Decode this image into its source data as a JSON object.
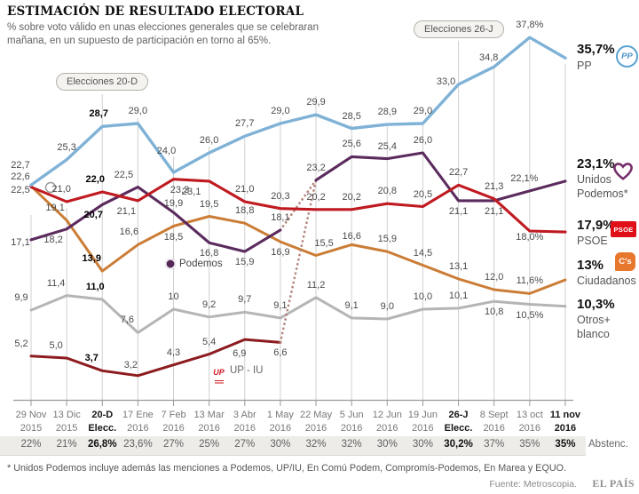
{
  "header": {
    "title": "ESTIMACIÓN DE RESULTADO ELECTORAL",
    "subtitle_line1": "% sobre voto válido en unas elecciones generales que se celebraran",
    "subtitle_line2": "mañana, en un supuesto de participación en torno al 65%."
  },
  "annotations": {
    "election_pill_1": "Elecciones 20-D",
    "election_pill_2": "Elecciones 26-J",
    "podemos_label": "Podemos",
    "upiu_label": "UP - IU",
    "upiu_logo_text": "UP"
  },
  "chart_data": {
    "type": "line",
    "grid": "vertical",
    "ylim": [
      0,
      40
    ],
    "connector_color": "#b5857c",
    "x_categories": [
      {
        "l1": "29 Nov",
        "l2": "2015",
        "bold": false
      },
      {
        "l1": "13 Dic",
        "l2": "2015",
        "bold": false
      },
      {
        "l1": "20-D",
        "l2": "Elecc.",
        "bold": true
      },
      {
        "l1": "17 Ene",
        "l2": "2016",
        "bold": false
      },
      {
        "l1": "7 Feb",
        "l2": "2016",
        "bold": false
      },
      {
        "l1": "13 Mar",
        "l2": "2016",
        "bold": false
      },
      {
        "l1": "3 Abr",
        "l2": "2016",
        "bold": false
      },
      {
        "l1": "1 May",
        "l2": "2016",
        "bold": false
      },
      {
        "l1": "22 May",
        "l2": "2016",
        "bold": false
      },
      {
        "l1": "5 Jun",
        "l2": "2016",
        "bold": false
      },
      {
        "l1": "12 Jun",
        "l2": "2016",
        "bold": false
      },
      {
        "l1": "19 Jun",
        "l2": "2016",
        "bold": false
      },
      {
        "l1": "26-J",
        "l2": "Elecc.",
        "bold": true
      },
      {
        "l1": "8 Sept",
        "l2": "2016",
        "bold": false
      },
      {
        "l1": "13 oct",
        "l2": "2016",
        "bold": false
      },
      {
        "l1": "11 nov",
        "l2": "2016",
        "bold": true
      }
    ],
    "series": [
      {
        "id": "pp",
        "name": "PP",
        "color": "#7fb2d6",
        "values": [
          22.7,
          25.3,
          28.7,
          29.0,
          24.0,
          26.0,
          27.7,
          29.0,
          29.9,
          28.5,
          28.9,
          29.0,
          33.0,
          34.8,
          37.8,
          35.7
        ],
        "labels": [
          "22,7",
          "25,3",
          "28,7",
          "29,0",
          "24,0",
          "26,0",
          "27,7",
          "29,0",
          "29,9",
          "28,5",
          "28,9",
          "29,0",
          "33,0",
          "34,8",
          "37,8%",
          null
        ],
        "bold_label_indices": [
          2
        ]
      },
      {
        "id": "psoe",
        "name": "PSOE",
        "color": "#c01a21",
        "values": [
          22.5,
          21.0,
          22.0,
          21.1,
          23.3,
          23.1,
          21.0,
          20.3,
          20.2,
          20.2,
          20.8,
          20.5,
          22.7,
          21.3,
          18.0,
          17.9
        ],
        "labels": [
          "22,5",
          "21,0",
          "22,0",
          "21,1",
          "23,3",
          "23,1",
          "21,0",
          "20,3",
          "20,2",
          "20,2",
          "20,8",
          "20,5",
          "22,7",
          "21,3",
          "18,0%",
          null
        ],
        "bold_label_indices": [
          2
        ]
      },
      {
        "id": "up",
        "name": "Podemos / Unidos Podemos*",
        "color": "#5b2b5e",
        "gap_after": 7,
        "values": [
          17.1,
          18.2,
          20.7,
          22.5,
          19.9,
          16.8,
          15.9,
          18.1,
          23.2,
          25.6,
          25.4,
          26.0,
          21.1,
          21.1,
          22.1,
          23.1
        ],
        "labels": [
          "17,1",
          "18,2",
          "20,7",
          "22,5",
          "19,9",
          "16,8",
          "15,9",
          "18,1",
          "23,2",
          "25,6",
          "25,4",
          "26,0",
          "21,1",
          "21,1",
          "22,1%",
          null
        ],
        "bold_label_indices": [
          2
        ]
      },
      {
        "id": "cs",
        "name": "Ciudadanos",
        "color": "#cb7d36",
        "values": [
          22.6,
          19.1,
          13.9,
          16.6,
          18.5,
          19.5,
          18.8,
          16.9,
          15.5,
          16.6,
          15.9,
          14.5,
          13.1,
          12.0,
          11.6,
          13.0
        ],
        "labels": [
          "22,6",
          "19,1",
          "13,9",
          "16,6",
          "18,5",
          "19,5",
          "18,8",
          "16,9",
          "15,5",
          "16,6",
          "15,9",
          "14,5",
          "13,1",
          "12,0",
          "11,6%",
          null
        ],
        "bold_label_indices": [
          2
        ]
      },
      {
        "id": "otros",
        "name": "Otros+blanco",
        "color": "#b5b5b5",
        "values": [
          9.9,
          11.4,
          11.0,
          7.6,
          10.0,
          9.2,
          9.7,
          9.1,
          11.2,
          9.1,
          9.0,
          10.0,
          10.1,
          10.8,
          10.5,
          10.3
        ],
        "labels": [
          "9,9",
          "11,4",
          "11,0",
          "7,6",
          "10",
          "9,2",
          "9,7",
          "9,1",
          "11,2",
          "9,1",
          "9,0",
          "10,0",
          "10,1",
          "10,8",
          "10,5%",
          null
        ],
        "bold_label_indices": [
          2
        ]
      },
      {
        "id": "upiu",
        "name": "UP-IU",
        "color": "#8d1c1f",
        "values": [
          5.2,
          5.0,
          3.7,
          3.2,
          4.3,
          5.4,
          6.9,
          6.6,
          null,
          null,
          null,
          null,
          null,
          null,
          null,
          null
        ],
        "labels": [
          "5,2",
          "5,0",
          "3,7",
          "3,2",
          "4,3",
          "5,4",
          "6,9",
          "6,6",
          null,
          null,
          null,
          null,
          null,
          null,
          null,
          null
        ],
        "bold_label_indices": [
          2
        ]
      }
    ],
    "abstention_row": {
      "label": "Abstenc.",
      "values": [
        "22%",
        "21%",
        "26,8%",
        "23,6%",
        "27%",
        "25%",
        "27%",
        "30%",
        "32%",
        "32%",
        "30%",
        "30%",
        "30,2%",
        "37%",
        "35%",
        "35%"
      ],
      "bold_indices": [
        2,
        12,
        15
      ]
    }
  },
  "legend": {
    "items": [
      {
        "value": "35,7%",
        "lines": [
          "PP"
        ],
        "logo": "pp-circle",
        "logo_text": "PP",
        "color": "#7fb2d6"
      },
      {
        "value": "23,1%",
        "lines": [
          "Unidos",
          "Podemos*"
        ],
        "logo": "heart",
        "color": "#5b2b5e"
      },
      {
        "value": "17,9%",
        "lines": [
          "PSOE"
        ],
        "logo": "psoe-box",
        "logo_text": "PSOE",
        "color": "#e01019"
      },
      {
        "value": "13%",
        "lines": [
          "Ciudadanos"
        ],
        "logo": "cs-box",
        "logo_text": "C's",
        "color": "#e8772e"
      },
      {
        "value": "10,3%",
        "lines": [
          "Otros+",
          "blanco"
        ],
        "logo": null,
        "color": "#b5b5b5"
      }
    ]
  },
  "footer": {
    "footnote": "* Unidos Podemos incluye además las menciones a Podemos, UP/IU, En Comú Podem, Compromís-Podemos, En Marea y EQUO.",
    "source": "Fuente: Metroscopia.",
    "brand": "EL PAÍS"
  }
}
